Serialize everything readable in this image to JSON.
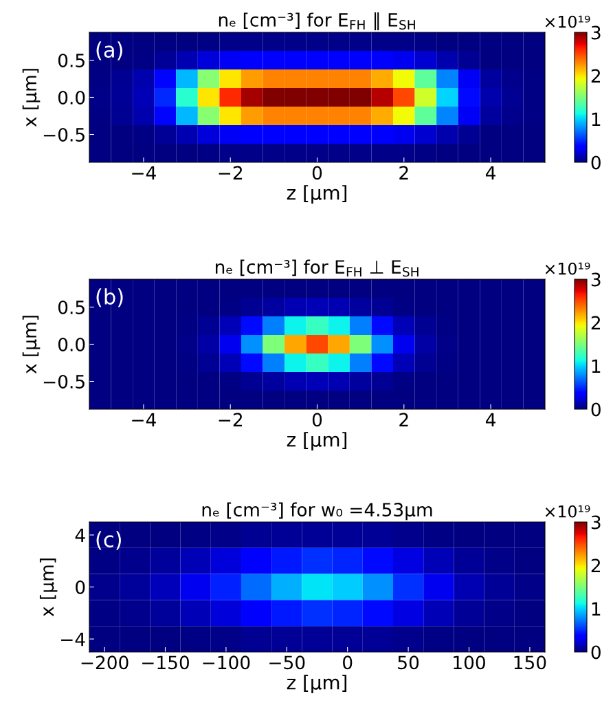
{
  "chart_data": [
    {
      "type": "heatmap",
      "title": "nₑ [cm⁻³] for E$_{FH}$ ∥ E$_{SH}$",
      "xlabel": "z [μm]",
      "ylabel": "x [μm]",
      "annotations": [
        "(a)",
        "×10¹⁹"
      ],
      "categories": [
        null,
        null,
        "−4",
        null,
        null,
        null,
        "−2",
        null,
        null,
        null,
        "0",
        null,
        null,
        null,
        "2",
        null,
        null,
        null,
        "4",
        null,
        null
      ],
      "y_categories": [
        null,
        "0.5",
        null,
        "0.0",
        null,
        "−0.5",
        null
      ],
      "clim": [
        0,
        3
      ],
      "cticks": [
        0,
        1,
        2,
        3
      ],
      "cells": [
        [
          0,
          0,
          0,
          0,
          0.01,
          0.02,
          0.03,
          0.03,
          0.03,
          0.03,
          0.03,
          0.03,
          0.03,
          0.03,
          0.03,
          0.02,
          0.01,
          0,
          0,
          0,
          0
        ],
        [
          0,
          0.01,
          0.02,
          0.06,
          0.14,
          0.24,
          0.31,
          0.35,
          0.36,
          0.36,
          0.36,
          0.36,
          0.36,
          0.34,
          0.3,
          0.22,
          0.12,
          0.05,
          0.01,
          0.01,
          0
        ],
        [
          0.02,
          0.05,
          0.12,
          0.39,
          0.92,
          1.54,
          2.0,
          2.23,
          2.31,
          2.31,
          2.31,
          2.31,
          2.31,
          2.19,
          1.93,
          1.39,
          0.77,
          0.31,
          0.09,
          0.04,
          0.02
        ],
        [
          0.03,
          0.06,
          0.15,
          0.5,
          1.2,
          2.0,
          2.6,
          2.9,
          3.0,
          3.0,
          3.0,
          3.0,
          3.0,
          2.85,
          2.5,
          1.8,
          1.0,
          0.4,
          0.12,
          0.05,
          0.02
        ],
        [
          0.02,
          0.05,
          0.12,
          0.39,
          0.92,
          1.54,
          2.0,
          2.23,
          2.31,
          2.31,
          2.31,
          2.31,
          2.31,
          2.19,
          1.93,
          1.39,
          0.77,
          0.31,
          0.09,
          0.04,
          0.02
        ],
        [
          0,
          0.01,
          0.02,
          0.06,
          0.14,
          0.24,
          0.31,
          0.35,
          0.36,
          0.36,
          0.36,
          0.36,
          0.36,
          0.34,
          0.3,
          0.22,
          0.12,
          0.05,
          0.01,
          0.01,
          0
        ],
        [
          0,
          0,
          0,
          0,
          0.01,
          0.02,
          0.03,
          0.03,
          0.03,
          0.03,
          0.03,
          0.03,
          0.03,
          0.03,
          0.03,
          0.02,
          0.01,
          0,
          0,
          0,
          0
        ]
      ]
    },
    {
      "type": "heatmap",
      "title": "nₑ [cm⁻³] for E$_{FH}$ ⊥ E$_{SH}$",
      "xlabel": "z [μm]",
      "ylabel": "x [μm]",
      "annotations": [
        "(b)",
        "×10¹⁹"
      ],
      "categories": [
        null,
        null,
        "−4",
        null,
        null,
        null,
        "−2",
        null,
        null,
        null,
        "0",
        null,
        null,
        null,
        "2",
        null,
        null,
        null,
        "4",
        null,
        null
      ],
      "y_categories": [
        null,
        "0.5",
        null,
        "0.0",
        null,
        "−0.5",
        null
      ],
      "clim": [
        0,
        3
      ],
      "cticks": [
        0,
        1,
        2,
        3
      ],
      "cells": [
        [
          0,
          0,
          0,
          0,
          0,
          0,
          0,
          0,
          0.01,
          0.01,
          0.01,
          0.01,
          0.01,
          0,
          0,
          0,
          0,
          0,
          0,
          0,
          0
        ],
        [
          0,
          0,
          0,
          0,
          0,
          0.01,
          0.02,
          0.05,
          0.09,
          0.13,
          0.15,
          0.13,
          0.09,
          0.05,
          0.02,
          0.01,
          0,
          0,
          0,
          0,
          0
        ],
        [
          0,
          0,
          0,
          0,
          0.02,
          0.05,
          0.15,
          0.4,
          0.75,
          1.1,
          1.25,
          1.1,
          0.75,
          0.4,
          0.15,
          0.05,
          0.02,
          0,
          0,
          0,
          0
        ],
        [
          0,
          0,
          0,
          0.01,
          0.03,
          0.1,
          0.3,
          0.8,
          1.5,
          2.2,
          2.5,
          2.2,
          1.5,
          0.8,
          0.3,
          0.1,
          0.03,
          0.01,
          0,
          0,
          0
        ],
        [
          0,
          0,
          0,
          0,
          0.02,
          0.05,
          0.15,
          0.4,
          0.75,
          1.1,
          1.25,
          1.1,
          0.75,
          0.4,
          0.15,
          0.05,
          0.02,
          0,
          0,
          0,
          0
        ],
        [
          0,
          0,
          0,
          0,
          0,
          0.01,
          0.02,
          0.05,
          0.09,
          0.13,
          0.15,
          0.13,
          0.09,
          0.05,
          0.02,
          0.01,
          0,
          0,
          0,
          0,
          0
        ],
        [
          0,
          0,
          0,
          0,
          0,
          0,
          0,
          0,
          0.01,
          0.01,
          0.01,
          0.01,
          0.01,
          0,
          0,
          0,
          0,
          0,
          0,
          0,
          0
        ]
      ]
    },
    {
      "type": "heatmap",
      "title": "nₑ [cm⁻³] for w₀ =4.53μm",
      "xlabel": "z [μm]",
      "ylabel": "x [μm]",
      "annotations": [
        "(c)",
        "×10¹⁹"
      ],
      "categories": [
        "−200",
        null,
        "−150",
        null,
        "−100",
        null,
        "−50",
        null,
        "0",
        null,
        "50",
        null,
        "100",
        null,
        "150"
      ],
      "y_categories": [
        "4",
        null,
        "0",
        null,
        "−4"
      ],
      "clim": [
        0,
        3
      ],
      "cticks": [
        0,
        1,
        2,
        3
      ],
      "cells": [
        [
          0,
          0.01,
          0.01,
          0.02,
          0.03,
          0.05,
          0.06,
          0.07,
          0.07,
          0.06,
          0.04,
          0.02,
          0.01,
          0,
          0
        ],
        [
          0.02,
          0.04,
          0.08,
          0.15,
          0.24,
          0.35,
          0.45,
          0.52,
          0.49,
          0.4,
          0.26,
          0.15,
          0.07,
          0.03,
          0.01
        ],
        [
          0.04,
          0.08,
          0.16,
          0.3,
          0.48,
          0.7,
          0.9,
          1.05,
          0.98,
          0.8,
          0.52,
          0.3,
          0.14,
          0.06,
          0.03
        ],
        [
          0.02,
          0.04,
          0.08,
          0.15,
          0.24,
          0.35,
          0.45,
          0.52,
          0.49,
          0.4,
          0.26,
          0.15,
          0.07,
          0.03,
          0.01
        ],
        [
          0,
          0.01,
          0.01,
          0.02,
          0.03,
          0.05,
          0.06,
          0.07,
          0.07,
          0.06,
          0.04,
          0.02,
          0.01,
          0,
          0
        ]
      ]
    }
  ]
}
